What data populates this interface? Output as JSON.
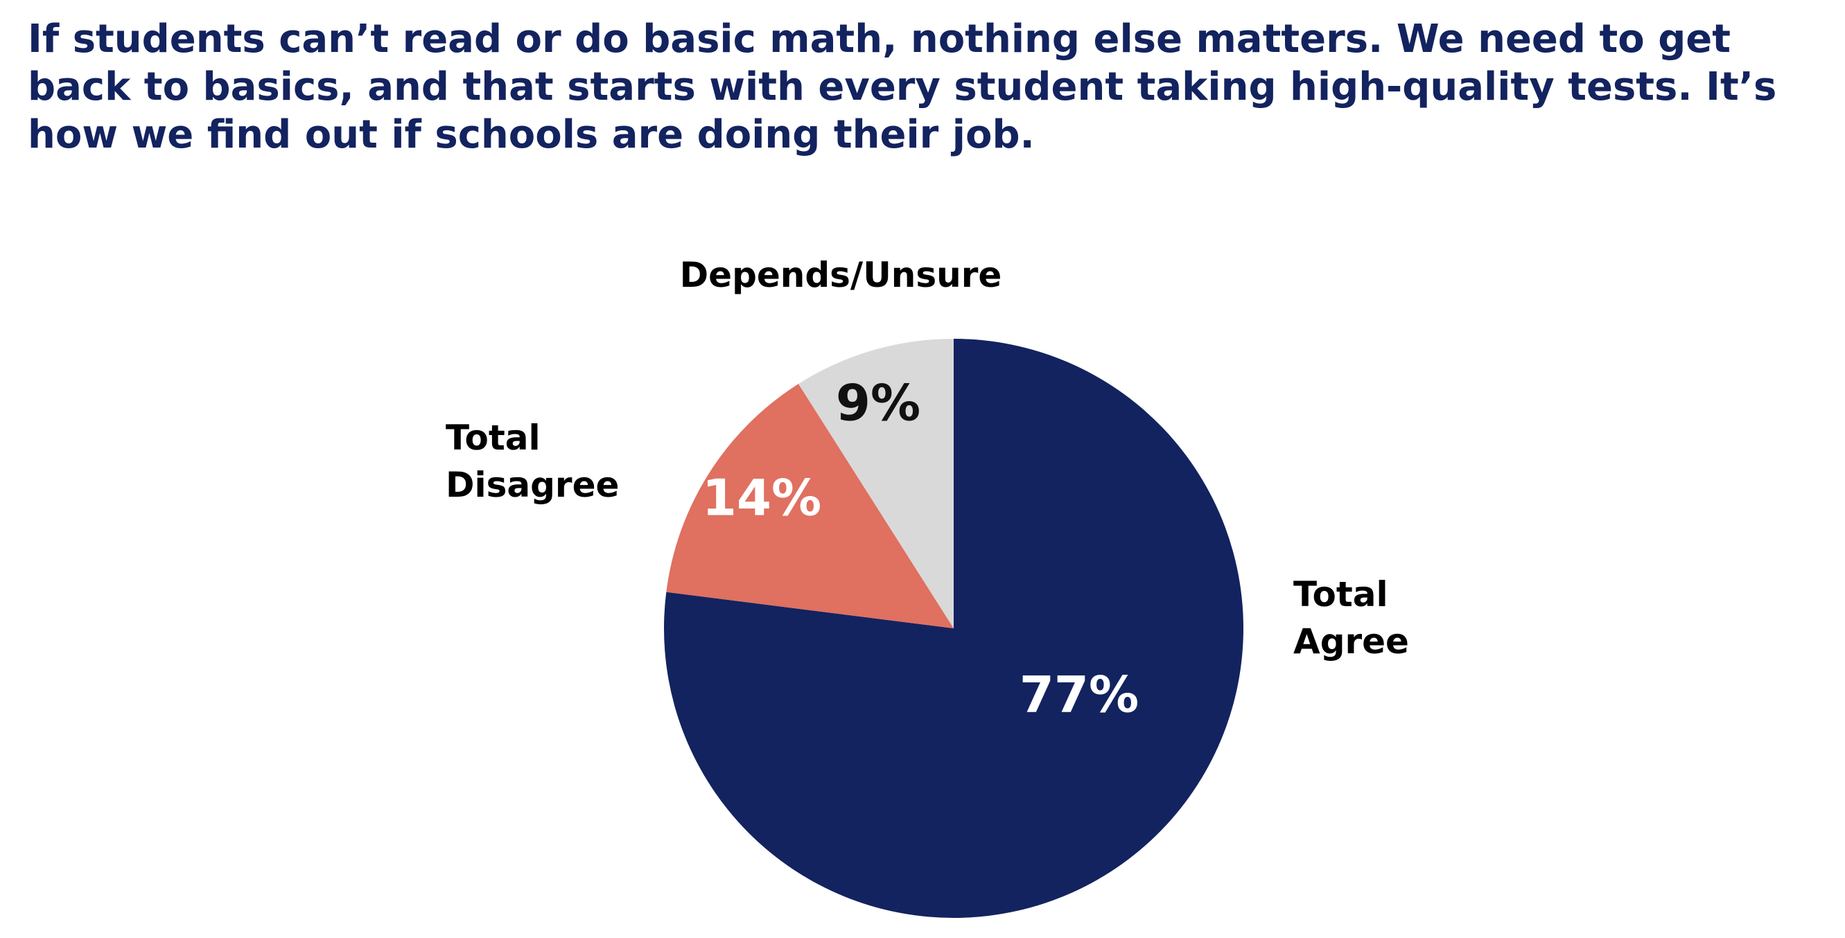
{
  "chart_data": {
    "type": "pie",
    "title": "If students can’t read or do basic math, nothing else matters. We need to get back to basics, and that starts with every student taking high-quality tests. It’s how we find out if schools are doing their job.",
    "categories": [
      "Total Agree",
      "Total Disagree",
      "Depends/Unsure"
    ],
    "values": [
      77,
      14,
      9
    ],
    "value_labels": [
      "77%",
      "14%",
      "9%"
    ],
    "colors": [
      "#13235f",
      "#e07060",
      "#d9d9d9"
    ],
    "value_label_colors": [
      "#ffffff",
      "#ffffff",
      "#111111"
    ]
  }
}
